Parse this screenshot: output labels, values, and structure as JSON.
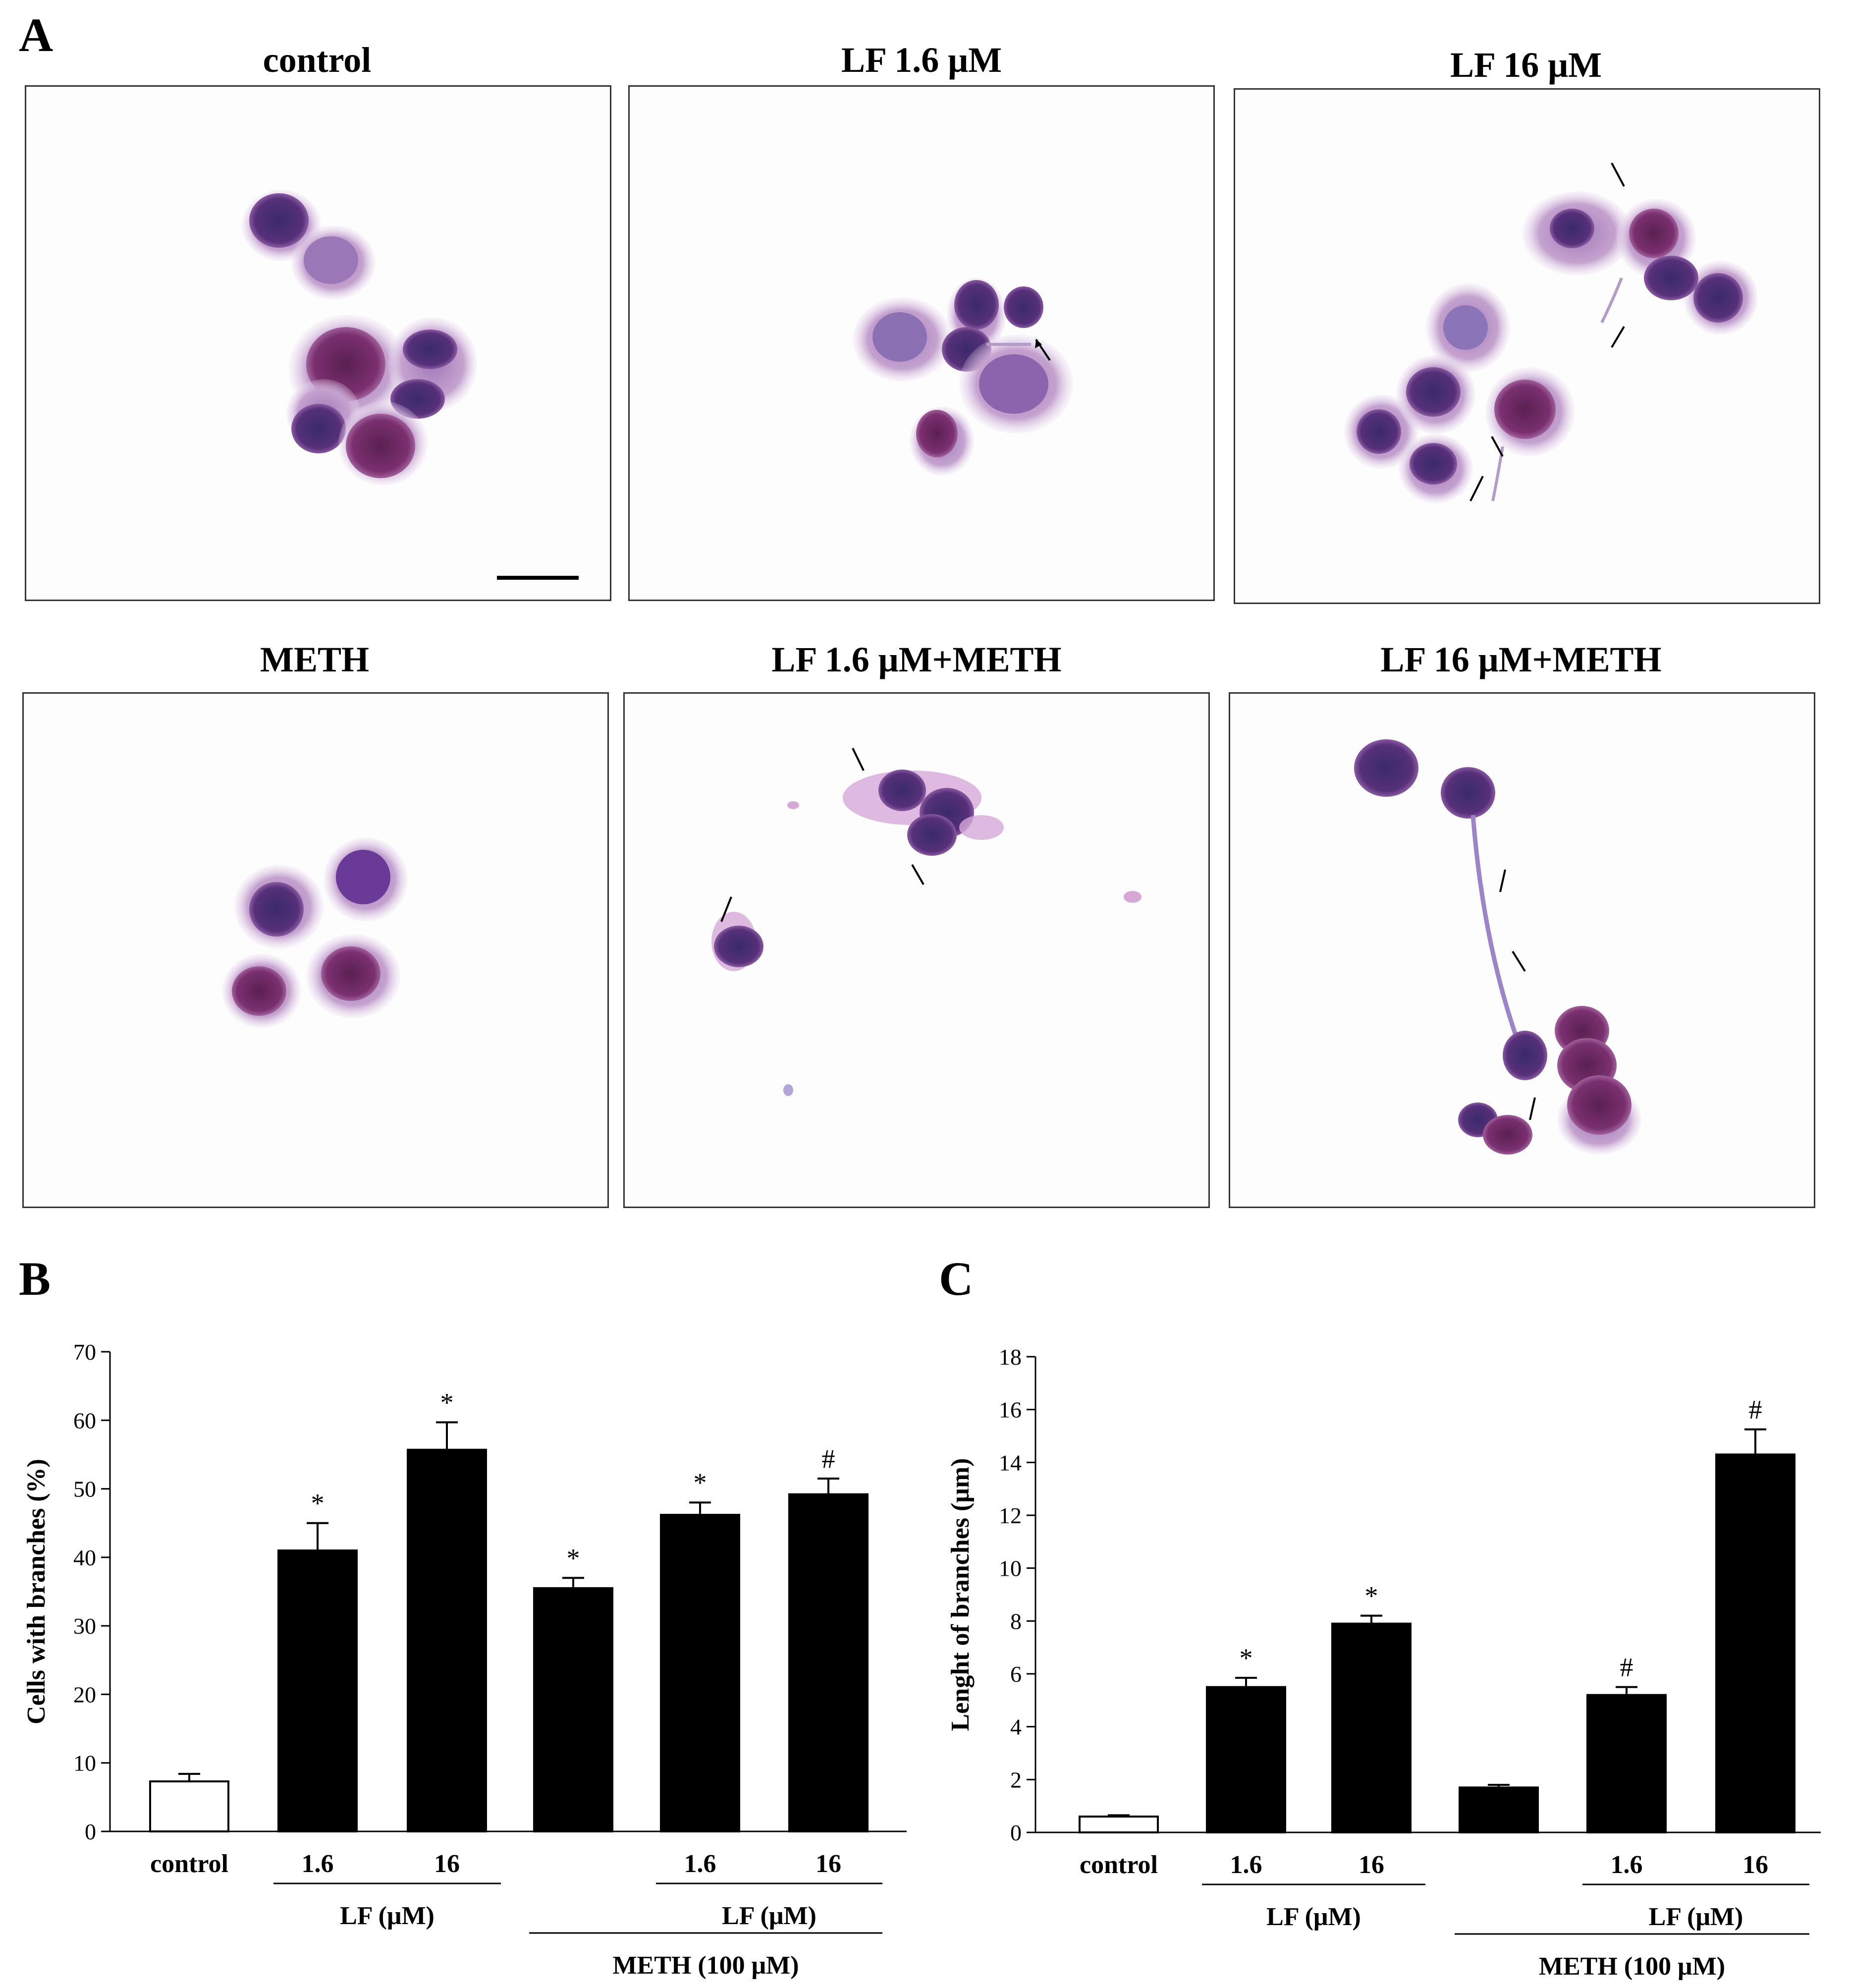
{
  "panel_labels": {
    "a": "A",
    "b": "B",
    "c": "C"
  },
  "micrographs": [
    {
      "title": "control",
      "scale_bar": true
    },
    {
      "title": "LF 1.6 μM"
    },
    {
      "title": "LF 16 μM"
    },
    {
      "title": "METH"
    },
    {
      "title": "LF 1.6 μM+METH"
    },
    {
      "title": "LF 16 μM+METH"
    }
  ],
  "chart_data": [
    {
      "type": "bar",
      "panel": "B",
      "ylabel": "Cells with branches (%)",
      "ylim": [
        0,
        70
      ],
      "yticks": [
        0,
        10,
        20,
        30,
        40,
        50,
        60,
        70
      ],
      "categories": [
        "control",
        "1.6",
        "16",
        "",
        "1.6",
        "16"
      ],
      "values": [
        7.3,
        41.0,
        55.7,
        35.5,
        46.2,
        49.2
      ],
      "errors": [
        1.1,
        4.0,
        4.0,
        1.5,
        1.8,
        2.3
      ],
      "annotations": [
        "",
        "*",
        "*",
        "*",
        "*",
        "#"
      ],
      "bar_colors": [
        "#ffffff",
        "#000000",
        "#000000",
        "#000000",
        "#000000",
        "#000000"
      ],
      "groups": [
        {
          "label": "LF (μM)",
          "from": 1,
          "to": 2
        },
        {
          "label": "LF (μM)",
          "from": 4,
          "to": 5
        },
        {
          "label": "METH (100 μM)",
          "from": 3,
          "to": 5
        }
      ]
    },
    {
      "type": "bar",
      "panel": "C",
      "ylabel": "Lenght of branches (μm)",
      "ylim": [
        0,
        18
      ],
      "yticks": [
        0,
        2,
        4,
        6,
        8,
        10,
        12,
        14,
        16,
        18
      ],
      "categories": [
        "control",
        "1.6",
        "16",
        "",
        "1.6",
        "16"
      ],
      "values": [
        0.6,
        5.5,
        7.9,
        1.7,
        5.2,
        14.3
      ],
      "errors": [
        0.05,
        0.35,
        0.3,
        0.1,
        0.3,
        0.95
      ],
      "annotations": [
        "",
        "*",
        "*",
        "",
        "#",
        "#"
      ],
      "bar_colors": [
        "#ffffff",
        "#000000",
        "#000000",
        "#000000",
        "#000000",
        "#000000"
      ],
      "groups": [
        {
          "label": "LF (μM)",
          "from": 1,
          "to": 2
        },
        {
          "label": "LF (μM)",
          "from": 4,
          "to": 5
        },
        {
          "label": "METH (100 μM)",
          "from": 3,
          "to": 5
        }
      ]
    }
  ]
}
